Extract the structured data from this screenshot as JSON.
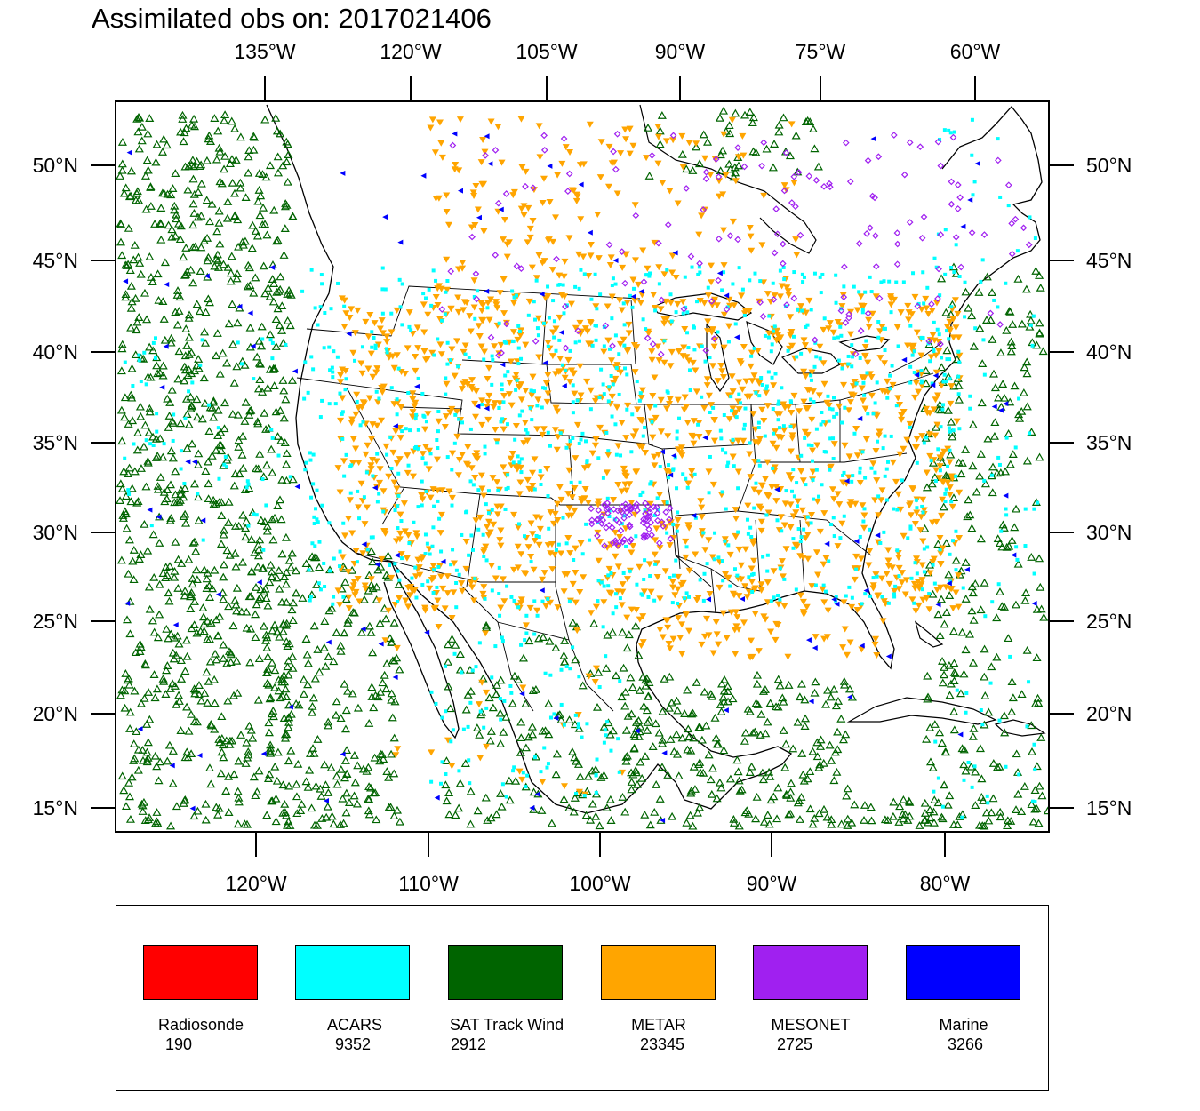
{
  "title": "Assimilated obs on: 2017021406",
  "map": {
    "top_axis": [
      "135°W",
      "120°W",
      "105°W",
      "90°W",
      "75°W",
      "60°W"
    ],
    "bottom_axis": [
      "120°W",
      "110°W",
      "100°W",
      "90°W",
      "80°W"
    ],
    "left_axis": [
      "50°N",
      "45°N",
      "40°N",
      "35°N",
      "30°N",
      "25°N",
      "20°N",
      "15°N"
    ],
    "right_axis": [
      "50°N",
      "45°N",
      "40°N",
      "35°N",
      "30°N",
      "25°N",
      "20°N",
      "15°N"
    ]
  },
  "legend": [
    {
      "name": "Radiosonde",
      "count": "190",
      "color": "#ff0000"
    },
    {
      "name": "ACARS",
      "count": "9352",
      "color": "#00ffff"
    },
    {
      "name": "SAT Track Wind",
      "count": "2912",
      "color": "#006400"
    },
    {
      "name": "METAR",
      "count": "23345",
      "color": "#ffa500"
    },
    {
      "name": "MESONET",
      "count": "2725",
      "color": "#a020f0"
    },
    {
      "name": "Marine",
      "count": "3266",
      "color": "#0000ff"
    }
  ]
}
